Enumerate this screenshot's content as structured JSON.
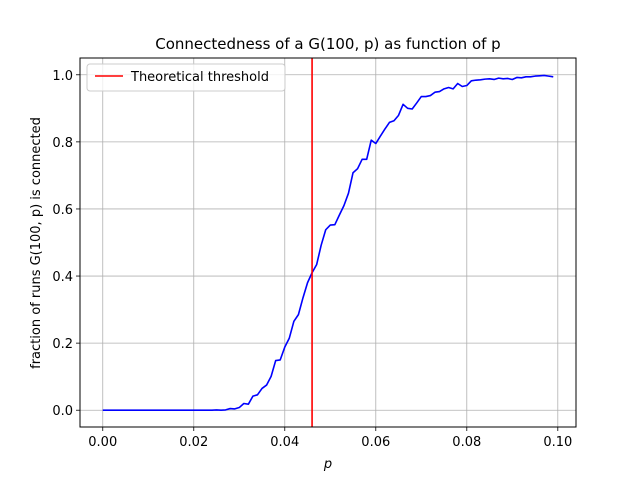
{
  "chart_data": {
    "type": "line",
    "title": "Connectedness of a G(100, p) as function of p",
    "xlabel": "p",
    "ylabel": "fraction of runs G(100, p) is connected",
    "xlim": [
      -0.005,
      0.104
    ],
    "ylim": [
      -0.05,
      1.05
    ],
    "x_ticks": [
      0.0,
      0.02,
      0.04,
      0.06,
      0.08,
      0.1
    ],
    "x_tick_labels": [
      "0.00",
      "0.02",
      "0.04",
      "0.06",
      "0.08",
      "0.10"
    ],
    "y_ticks": [
      0.0,
      0.2,
      0.4,
      0.6,
      0.8,
      1.0
    ],
    "y_tick_labels": [
      "0.0",
      "0.2",
      "0.4",
      "0.6",
      "0.8",
      "1.0"
    ],
    "grid": true,
    "legend_position": "top-left",
    "series": [
      {
        "color": "#0000ff",
        "x": [
          0.0,
          0.001,
          0.002,
          0.003,
          0.004,
          0.005,
          0.006,
          0.007,
          0.008,
          0.009,
          0.01,
          0.011,
          0.012,
          0.013,
          0.014,
          0.015,
          0.016,
          0.017,
          0.018,
          0.019,
          0.02,
          0.021,
          0.022,
          0.023,
          0.024,
          0.025,
          0.026,
          0.027,
          0.028,
          0.029,
          0.03,
          0.031,
          0.032,
          0.033,
          0.034,
          0.035,
          0.036,
          0.037,
          0.038,
          0.039,
          0.04,
          0.041,
          0.042,
          0.043,
          0.044,
          0.045,
          0.046,
          0.047,
          0.048,
          0.049,
          0.05,
          0.051,
          0.052,
          0.053,
          0.054,
          0.055,
          0.056,
          0.057,
          0.058,
          0.059,
          0.06,
          0.061,
          0.062,
          0.063,
          0.064,
          0.065,
          0.066,
          0.067,
          0.068,
          0.069,
          0.07,
          0.071,
          0.072,
          0.073,
          0.074,
          0.075,
          0.076,
          0.077,
          0.078,
          0.079,
          0.08,
          0.081,
          0.082,
          0.083,
          0.084,
          0.085,
          0.086,
          0.087,
          0.088,
          0.089,
          0.09,
          0.091,
          0.092,
          0.093,
          0.094,
          0.095,
          0.096,
          0.097,
          0.098,
          0.099
        ],
        "y": [
          0.0,
          0.0,
          0.0,
          0.0,
          0.0,
          0.0,
          0.0,
          0.0,
          0.0,
          0.0,
          0.0,
          0.0,
          0.0,
          0.0,
          0.0,
          0.0,
          0.0,
          0.0,
          0.0,
          0.0,
          0.0,
          0.0,
          0.0,
          0.0,
          0.0,
          0.001,
          0.0,
          0.001,
          0.005,
          0.004,
          0.008,
          0.02,
          0.018,
          0.042,
          0.046,
          0.065,
          0.075,
          0.101,
          0.148,
          0.15,
          0.188,
          0.215,
          0.265,
          0.285,
          0.335,
          0.38,
          0.41,
          0.434,
          0.492,
          0.538,
          0.552,
          0.553,
          0.582,
          0.61,
          0.647,
          0.708,
          0.72,
          0.748,
          0.748,
          0.805,
          0.795,
          0.817,
          0.838,
          0.858,
          0.863,
          0.879,
          0.912,
          0.9,
          0.898,
          0.916,
          0.935,
          0.935,
          0.938,
          0.948,
          0.95,
          0.958,
          0.962,
          0.958,
          0.974,
          0.965,
          0.968,
          0.982,
          0.984,
          0.985,
          0.987,
          0.988,
          0.986,
          0.99,
          0.988,
          0.989,
          0.986,
          0.992,
          0.991,
          0.994,
          0.994,
          0.996,
          0.997,
          0.998,
          0.996,
          0.994
        ]
      },
      {
        "name": "Theoretical threshold",
        "color": "#ff0000",
        "x": [
          0.046,
          0.046
        ],
        "y": [
          -0.05,
          1.05
        ]
      }
    ]
  }
}
